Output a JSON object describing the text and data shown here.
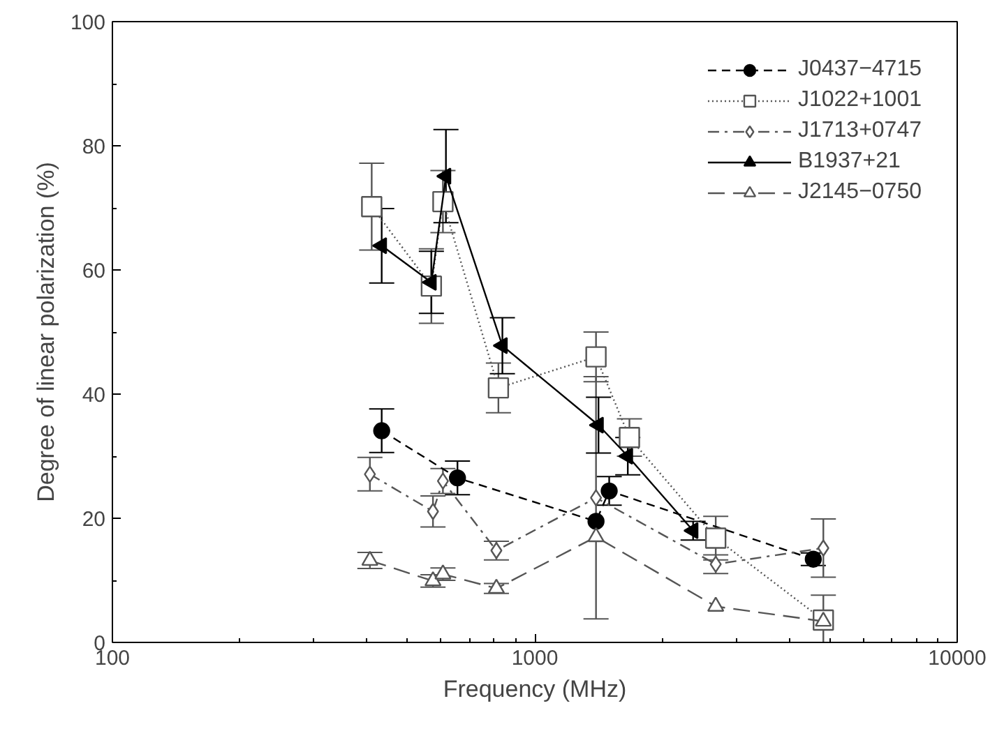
{
  "chart_data": {
    "type": "line",
    "xlabel": "Frequency (MHz)",
    "ylabel": "Degree of linear polarization (%)",
    "log": "x",
    "xlim": [
      100,
      10000
    ],
    "ylim": [
      0,
      100
    ],
    "xticks": [
      100,
      1000,
      10000
    ],
    "yticks": [
      0,
      20,
      40,
      60,
      80,
      100
    ],
    "grid": false,
    "legend": "top right",
    "series": [
      {
        "name": "J0437−4715",
        "color": "#000000",
        "marker": "circle",
        "line_style": "dashed",
        "x": [
          434,
          656,
          1396,
          1500,
          4563
        ],
        "values": [
          34.1,
          26.5,
          19.5,
          24.4,
          13.4
        ],
        "errors": [
          3.5,
          2.7,
          null,
          2.3,
          1
        ]
      },
      {
        "name": "J1022+1001",
        "color": "#555555",
        "marker": "square",
        "line_style": "dotted",
        "x": [
          411,
          569,
          606,
          820,
          1396,
          1675,
          2681,
          4820
        ],
        "values": [
          70.2,
          57.4,
          71,
          41,
          46,
          33,
          16.8,
          3.6
        ],
        "errors": [
          7,
          6,
          5,
          4,
          4,
          3,
          3.5,
          4
        ]
      },
      {
        "name": "J1713+0747",
        "color": "#555555",
        "marker": "diamond",
        "line_style": "dashdot",
        "x": [
          407,
          574,
          606,
          811,
          1396,
          2681,
          4820
        ],
        "values": [
          27.1,
          21.1,
          26,
          14.8,
          23.3,
          12.6,
          15.2
        ],
        "errors": [
          2.7,
          2.5,
          2,
          1.5,
          19.5,
          1.5,
          4.7
        ]
      },
      {
        "name": "B1937+21",
        "color": "#000000",
        "marker": "triangle",
        "line_style": "solid",
        "x": [
          434,
          569,
          616,
          838,
          1415,
          1660,
          2370
        ],
        "values": [
          63.9,
          58,
          75.1,
          47.8,
          35,
          30,
          18
        ],
        "errors": [
          6,
          5,
          7.5,
          4.5,
          4.5,
          3,
          1.5
        ]
      },
      {
        "name": "J2145−0750",
        "color": "#555555",
        "marker": "triangle",
        "line_style": "longdash",
        "x": [
          407,
          574,
          606,
          811,
          1396,
          2681,
          4820
        ],
        "values": [
          13.2,
          9.9,
          11,
          8.7,
          17,
          5.8,
          3.4
        ],
        "errors": [
          1.3,
          1,
          1,
          0.8,
          null,
          null,
          null
        ]
      }
    ]
  }
}
